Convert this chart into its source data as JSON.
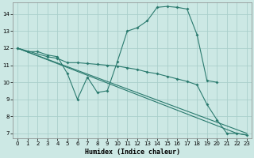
{
  "xlabel": "Humidex (Indice chaleur)",
  "background_color": "#cce8e4",
  "grid_color": "#aacfcb",
  "line_color": "#2a7a6e",
  "xlim": [
    -0.5,
    23.5
  ],
  "ylim": [
    6.7,
    14.7
  ],
  "yticks": [
    7,
    8,
    9,
    10,
    11,
    12,
    13,
    14
  ],
  "xticks": [
    0,
    1,
    2,
    3,
    4,
    5,
    6,
    7,
    8,
    9,
    10,
    11,
    12,
    13,
    14,
    15,
    16,
    17,
    18,
    19,
    20,
    21,
    22,
    23
  ],
  "line1_x": [
    0,
    1,
    2,
    3,
    4,
    5,
    6,
    7,
    8,
    9,
    10,
    11,
    12,
    13,
    14,
    15,
    16,
    17,
    18,
    19,
    20
  ],
  "line1_y": [
    12.0,
    11.8,
    11.8,
    11.6,
    11.5,
    10.5,
    9.0,
    10.3,
    9.4,
    9.5,
    11.2,
    13.0,
    13.2,
    13.6,
    14.4,
    14.45,
    14.4,
    14.3,
    12.8,
    10.1,
    10.0
  ],
  "line2_x": [
    0,
    23
  ],
  "line2_y": [
    12.0,
    7.0
  ],
  "line3_x": [
    0,
    22,
    23
  ],
  "line3_y": [
    12.0,
    7.0,
    6.9
  ],
  "line4_x": [
    0,
    3,
    4,
    5,
    6,
    7,
    8,
    9,
    10,
    11,
    12,
    13,
    14,
    15,
    16,
    17,
    18,
    19,
    20,
    21,
    22,
    23
  ],
  "line4_y": [
    12.0,
    11.5,
    11.4,
    11.15,
    11.15,
    11.1,
    11.05,
    11.0,
    10.95,
    10.85,
    10.75,
    10.6,
    10.5,
    10.35,
    10.2,
    10.05,
    9.85,
    8.7,
    7.8,
    7.0,
    7.0,
    6.9
  ]
}
